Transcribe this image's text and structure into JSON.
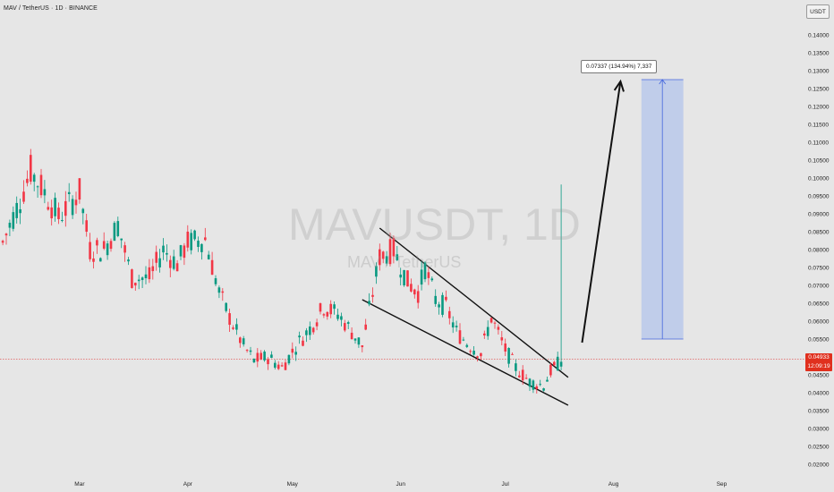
{
  "header": {
    "title": "MAV / TetherUS · 1D · BINANCE"
  },
  "unit_button": "USDT",
  "watermark": {
    "symbol": "MAVUSDT, 1D",
    "name": "MAV / TetherUS"
  },
  "price_tag": {
    "price": "0.04933",
    "countdown": "12:09:19"
  },
  "projection_label": "0.07337 (134.94%) 7,337",
  "colors": {
    "up": "#089981",
    "down": "#f23645",
    "box_fill": "#b8c8ea",
    "box_line": "#4466dd",
    "price_line": "#e04040"
  },
  "chart_data": {
    "type": "candlestick",
    "title": "MAV / TetherUS · 1D · BINANCE",
    "ylim": [
      0.0175,
      0.1448
    ],
    "y_ticks": [
      "0.02000",
      "0.02500",
      "0.03000",
      "0.03500",
      "0.04000",
      "0.04500",
      "0.05500",
      "0.06000",
      "0.06500",
      "0.07000",
      "0.07500",
      "0.08000",
      "0.08500",
      "0.09000",
      "0.09500",
      "0.10000",
      "0.10500",
      "0.11000",
      "0.11500",
      "0.12000",
      "0.12500",
      "0.13000",
      "0.13500",
      "0.14000"
    ],
    "x_ticks": [
      "Mar",
      "Apr",
      "May",
      "Jun",
      "Jul",
      "Aug",
      "Sep"
    ],
    "last_price": 0.04933,
    "close_points": [
      {
        "date": "2024-02-08",
        "close": 0.082
      },
      {
        "date": "2024-02-13",
        "close": 0.094
      },
      {
        "date": "2024-02-16",
        "close": 0.102
      },
      {
        "date": "2024-02-20",
        "close": 0.096
      },
      {
        "date": "2024-02-24",
        "close": 0.089
      },
      {
        "date": "2024-03-01",
        "close": 0.096
      },
      {
        "date": "2024-03-04",
        "close": 0.08
      },
      {
        "date": "2024-03-08",
        "close": 0.08
      },
      {
        "date": "2024-03-12",
        "close": 0.087
      },
      {
        "date": "2024-03-16",
        "close": 0.072
      },
      {
        "date": "2024-03-21",
        "close": 0.072
      },
      {
        "date": "2024-03-25",
        "close": 0.08
      },
      {
        "date": "2024-03-29",
        "close": 0.076
      },
      {
        "date": "2024-04-01",
        "close": 0.082
      },
      {
        "date": "2024-04-06",
        "close": 0.083
      },
      {
        "date": "2024-04-10",
        "close": 0.068
      },
      {
        "date": "2024-04-13",
        "close": 0.061
      },
      {
        "date": "2024-04-17",
        "close": 0.053
      },
      {
        "date": "2024-04-20",
        "close": 0.049
      },
      {
        "date": "2024-04-24",
        "close": 0.05
      },
      {
        "date": "2024-04-28",
        "close": 0.047
      },
      {
        "date": "2024-05-02",
        "close": 0.053
      },
      {
        "date": "2024-05-06",
        "close": 0.058
      },
      {
        "date": "2024-05-10",
        "close": 0.064
      },
      {
        "date": "2024-05-14",
        "close": 0.062
      },
      {
        "date": "2024-05-18",
        "close": 0.057
      },
      {
        "date": "2024-05-21",
        "close": 0.053
      },
      {
        "date": "2024-05-23",
        "close": 0.063
      },
      {
        "date": "2024-05-26",
        "close": 0.078
      },
      {
        "date": "2024-05-30",
        "close": 0.08
      },
      {
        "date": "2024-06-03",
        "close": 0.071
      },
      {
        "date": "2024-06-06",
        "close": 0.068
      },
      {
        "date": "2024-06-08",
        "close": 0.075
      },
      {
        "date": "2024-06-11",
        "close": 0.066
      },
      {
        "date": "2024-06-14",
        "close": 0.064
      },
      {
        "date": "2024-06-17",
        "close": 0.057
      },
      {
        "date": "2024-06-20",
        "close": 0.054
      },
      {
        "date": "2024-06-24",
        "close": 0.051
      },
      {
        "date": "2024-06-27",
        "close": 0.061
      },
      {
        "date": "2024-07-01",
        "close": 0.052
      },
      {
        "date": "2024-07-04",
        "close": 0.047
      },
      {
        "date": "2024-07-08",
        "close": 0.043
      },
      {
        "date": "2024-07-12",
        "close": 0.042
      },
      {
        "date": "2024-07-14",
        "close": 0.046
      },
      {
        "date": "2024-07-17",
        "close": 0.049
      }
    ],
    "spike": {
      "date": "2024-07-17",
      "high": 0.0982
    },
    "channel_upper": [
      {
        "date": "2024-05-26",
        "price": 0.086
      },
      {
        "date": "2024-07-19",
        "price": 0.0443
      }
    ],
    "channel_lower": [
      {
        "date": "2024-05-21",
        "price": 0.066
      },
      {
        "date": "2024-07-19",
        "price": 0.0365
      }
    ],
    "arrow": {
      "from": {
        "date": "2024-07-23",
        "price": 0.054
      },
      "to": {
        "date": "2024-08-03",
        "price": 0.127
      }
    },
    "target_box": {
      "from_date": "2024-08-09",
      "to_date": "2024-08-21",
      "low": 0.055,
      "high": 0.1275
    }
  }
}
